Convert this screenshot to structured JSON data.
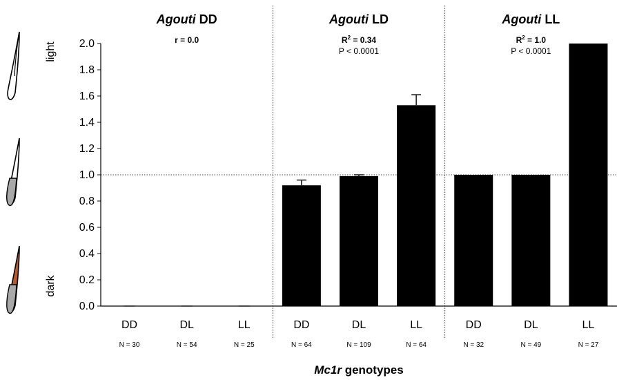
{
  "chart_data": {
    "type": "bar",
    "title": "",
    "xlabel": "Mc1r genotypes",
    "xlabel_italic_part": "Mc1r",
    "xlabel_rest": " genotypes",
    "ylabel_top": "light",
    "ylabel_bottom": "dark",
    "ylim": [
      0,
      2.0
    ],
    "yticks": [
      "0.0",
      "0.2",
      "0.4",
      "0.6",
      "0.8",
      "1.0",
      "1.2",
      "1.4",
      "1.6",
      "1.8",
      "2.0"
    ],
    "reference_line": 1.0,
    "bar_color": "#000000",
    "panels": [
      {
        "title_italic": "Agouti",
        "title_rest": " DD",
        "stat_bold": "r = 0.0",
        "stat_sup": "",
        "stat_p": "",
        "categories": [
          "DD",
          "DL",
          "LL"
        ],
        "values": [
          0,
          0,
          0
        ],
        "errors": [
          0,
          0,
          0
        ],
        "counts": [
          "N = 30",
          "N = 54",
          "N = 25"
        ]
      },
      {
        "title_italic": "Agouti",
        "title_rest": " LD",
        "stat_bold": "R",
        "stat_sup": "2",
        "stat_bold_tail": " = 0.34",
        "stat_p": "P < 0.0001",
        "categories": [
          "DD",
          "DL",
          "LL"
        ],
        "values": [
          0.92,
          0.99,
          1.53
        ],
        "errors": [
          0.04,
          0.01,
          0.08
        ],
        "counts": [
          "N = 64",
          "N = 109",
          "N = 64"
        ]
      },
      {
        "title_italic": "Agouti",
        "title_rest": " LL",
        "stat_bold": "R",
        "stat_sup": "2",
        "stat_bold_tail": " = 1.0",
        "stat_p": "P < 0.0001",
        "categories": [
          "DD",
          "DL",
          "LL"
        ],
        "values": [
          1.0,
          1.0,
          2.0
        ],
        "errors": [
          0,
          0,
          0
        ],
        "counts": [
          "N = 32",
          "N = 49",
          "N = 27"
        ]
      }
    ]
  },
  "hair_icons": [
    {
      "name": "light-hair-icon",
      "fill": "#ffffff",
      "band": "#ffffff"
    },
    {
      "name": "intermediate-hair-icon",
      "fill": "#ffffff",
      "band": "#aaaaaa"
    },
    {
      "name": "dark-hair-icon",
      "fill": "#b85a2c",
      "band": "#aaaaaa"
    }
  ]
}
